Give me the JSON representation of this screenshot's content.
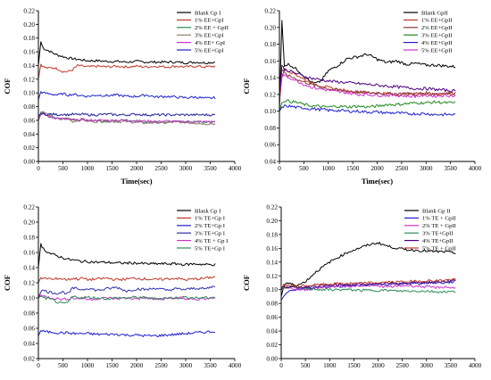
{
  "chart_data": [
    {
      "type": "line",
      "title": "",
      "xlabel": "Time(sec)",
      "ylabel": "COF",
      "xlim": [
        0,
        4000
      ],
      "ylim": [
        0.0,
        0.22
      ],
      "x_ticks": [
        "0",
        "500",
        "1000",
        "1500",
        "2000",
        "2500",
        "3000",
        "3500",
        "4000"
      ],
      "y_ticks": [
        "0.00",
        "0.02",
        "0.04",
        "0.06",
        "0.08",
        "0.10",
        "0.12",
        "0.14",
        "0.16",
        "0.18",
        "0.20",
        "0.22"
      ],
      "legend_position": "top-right",
      "x": [
        0,
        50,
        100,
        200,
        300,
        400,
        500,
        600,
        700,
        800,
        900,
        1000,
        1200,
        1400,
        1600,
        1800,
        2000,
        2200,
        2400,
        2600,
        2800,
        3000,
        3200,
        3400,
        3600
      ],
      "series": [
        {
          "name": "Blank Gp I",
          "color": "#000000",
          "values": [
            0.14,
            0.175,
            0.165,
            0.162,
            0.158,
            0.155,
            0.153,
            0.151,
            0.15,
            0.149,
            0.148,
            0.147,
            0.147,
            0.146,
            0.146,
            0.145,
            0.146,
            0.145,
            0.145,
            0.145,
            0.145,
            0.144,
            0.145,
            0.144,
            0.145
          ]
        },
        {
          "name": "1% EE+GpI",
          "color": "#c0392b",
          "values": [
            0.12,
            0.142,
            0.138,
            0.136,
            0.137,
            0.135,
            0.131,
            0.131,
            0.134,
            0.14,
            0.139,
            0.138,
            0.139,
            0.138,
            0.139,
            0.138,
            0.139,
            0.138,
            0.139,
            0.138,
            0.139,
            0.138,
            0.139,
            0.138,
            0.139
          ]
        },
        {
          "name": "2% EE + GpII",
          "color": "#2e8b57",
          "values": [
            0.06,
            0.072,
            0.07,
            0.066,
            0.064,
            0.063,
            0.062,
            0.062,
            0.061,
            0.061,
            0.06,
            0.06,
            0.06,
            0.059,
            0.059,
            0.06,
            0.059,
            0.058,
            0.058,
            0.058,
            0.058,
            0.058,
            0.058,
            0.058,
            0.058
          ]
        },
        {
          "name": "3% EE+GpI",
          "color": "#8a7e6a",
          "values": [
            0.06,
            0.068,
            0.072,
            0.068,
            0.065,
            0.062,
            0.062,
            0.063,
            0.058,
            0.06,
            0.062,
            0.059,
            0.058,
            0.059,
            0.058,
            0.058,
            0.057,
            0.056,
            0.057,
            0.056,
            0.058,
            0.057,
            0.056,
            0.055,
            0.055
          ]
        },
        {
          "name": "4% EE+ GpI",
          "color": "#cc33cc",
          "values": [
            0.06,
            0.07,
            0.069,
            0.066,
            0.064,
            0.063,
            0.062,
            0.061,
            0.061,
            0.06,
            0.061,
            0.06,
            0.06,
            0.06,
            0.06,
            0.06,
            0.059,
            0.059,
            0.058,
            0.059,
            0.058,
            0.058,
            0.058,
            0.058,
            0.058
          ]
        },
        {
          "name": "5% EE+GpI",
          "color": "#1f1fcc",
          "values": [
            0.09,
            0.102,
            0.1,
            0.099,
            0.098,
            0.097,
            0.099,
            0.097,
            0.098,
            0.097,
            0.096,
            0.095,
            0.097,
            0.096,
            0.097,
            0.095,
            0.095,
            0.097,
            0.094,
            0.095,
            0.094,
            0.093,
            0.094,
            0.092,
            0.093
          ]
        },
        {
          "name": "",
          "color": "#1f1f99",
          "values": [
            0.066,
            0.07,
            0.069,
            0.069,
            0.069,
            0.068,
            0.069,
            0.068,
            0.069,
            0.068,
            0.069,
            0.068,
            0.068,
            0.069,
            0.068,
            0.068,
            0.069,
            0.068,
            0.068,
            0.068,
            0.068,
            0.068,
            0.068,
            0.068,
            0.068
          ]
        }
      ]
    },
    {
      "type": "line",
      "title": "",
      "xlabel": "Time(sec)",
      "ylabel": "COF",
      "xlim": [
        0,
        4000
      ],
      "ylim": [
        0.04,
        0.22
      ],
      "x_ticks": [
        "0",
        "500",
        "1000",
        "1500",
        "2000",
        "2500",
        "3000",
        "3500",
        "4000"
      ],
      "y_ticks": [
        "0.04",
        "0.06",
        "0.08",
        "0.10",
        "0.12",
        "0.14",
        "0.16",
        "0.18",
        "0.20",
        "0.22"
      ],
      "legend_position": "top-right",
      "x": [
        0,
        50,
        100,
        200,
        300,
        400,
        500,
        600,
        700,
        800,
        900,
        1000,
        1200,
        1400,
        1600,
        1800,
        2000,
        2200,
        2400,
        2600,
        2800,
        3000,
        3200,
        3400,
        3600
      ],
      "series": [
        {
          "name": "Blank GpII",
          "color": "#000000",
          "values": [
            0.1,
            0.21,
            0.155,
            0.156,
            0.152,
            0.148,
            0.142,
            0.137,
            0.133,
            0.134,
            0.14,
            0.148,
            0.155,
            0.163,
            0.165,
            0.168,
            0.162,
            0.158,
            0.16,
            0.156,
            0.157,
            0.155,
            0.155,
            0.154,
            0.153
          ]
        },
        {
          "name": "1% EE+GpII",
          "color": "#c0392b",
          "values": [
            0.11,
            0.14,
            0.15,
            0.148,
            0.145,
            0.142,
            0.138,
            0.135,
            0.133,
            0.131,
            0.13,
            0.128,
            0.126,
            0.124,
            0.123,
            0.122,
            0.122,
            0.121,
            0.12,
            0.121,
            0.12,
            0.121,
            0.12,
            0.121,
            0.12
          ]
        },
        {
          "name": "2% EE+GpII",
          "color": "#8b3a3a",
          "values": [
            0.11,
            0.15,
            0.145,
            0.142,
            0.14,
            0.137,
            0.135,
            0.133,
            0.131,
            0.13,
            0.128,
            0.127,
            0.125,
            0.124,
            0.123,
            0.122,
            0.122,
            0.121,
            0.121,
            0.121,
            0.121,
            0.122,
            0.121,
            0.122,
            0.122
          ]
        },
        {
          "name": "3% EE+GpII",
          "color": "#228b22",
          "values": [
            0.1,
            0.11,
            0.113,
            0.112,
            0.111,
            0.11,
            0.108,
            0.107,
            0.106,
            0.106,
            0.105,
            0.105,
            0.106,
            0.105,
            0.106,
            0.105,
            0.106,
            0.108,
            0.108,
            0.109,
            0.11,
            0.11,
            0.111,
            0.11,
            0.11
          ]
        },
        {
          "name": "4% EE+GpII",
          "color": "#1f1fcc",
          "values": [
            0.1,
            0.105,
            0.106,
            0.106,
            0.105,
            0.104,
            0.104,
            0.103,
            0.103,
            0.102,
            0.102,
            0.101,
            0.101,
            0.1,
            0.1,
            0.099,
            0.099,
            0.098,
            0.098,
            0.097,
            0.097,
            0.097,
            0.096,
            0.096,
            0.096
          ]
        },
        {
          "name": "5% EE+GpII",
          "color": "#cc33cc",
          "values": [
            0.12,
            0.145,
            0.142,
            0.14,
            0.138,
            0.135,
            0.132,
            0.13,
            0.128,
            0.127,
            0.126,
            0.125,
            0.123,
            0.122,
            0.12,
            0.12,
            0.119,
            0.119,
            0.119,
            0.118,
            0.118,
            0.119,
            0.118,
            0.119,
            0.118
          ]
        },
        {
          "name": "",
          "color": "#4b0082",
          "values": [
            0.12,
            0.155,
            0.15,
            0.148,
            0.146,
            0.144,
            0.142,
            0.14,
            0.139,
            0.138,
            0.137,
            0.136,
            0.135,
            0.134,
            0.133,
            0.132,
            0.131,
            0.13,
            0.129,
            0.128,
            0.127,
            0.127,
            0.126,
            0.125,
            0.124
          ]
        }
      ]
    },
    {
      "type": "line",
      "title": "",
      "xlabel": "",
      "ylabel": "COF",
      "xlim": [
        0,
        4000
      ],
      "ylim": [
        0.02,
        0.22
      ],
      "x_ticks": [
        "0",
        "500",
        "1000",
        "1500",
        "2000",
        "2500",
        "3000",
        "3500",
        "4000"
      ],
      "y_ticks": [
        "0.02",
        "0.04",
        "0.06",
        "0.08",
        "0.10",
        "0.12",
        "0.14",
        "0.16",
        "0.18",
        "0.20",
        "0.22"
      ],
      "legend_position": "top-right",
      "x": [
        0,
        50,
        100,
        200,
        300,
        400,
        500,
        600,
        700,
        800,
        900,
        1000,
        1200,
        1400,
        1600,
        1800,
        2000,
        2200,
        2400,
        2600,
        2800,
        3000,
        3200,
        3400,
        3600
      ],
      "series": [
        {
          "name": "Blank Gp I",
          "color": "#000000",
          "values": [
            0.14,
            0.172,
            0.165,
            0.16,
            0.157,
            0.155,
            0.153,
            0.151,
            0.15,
            0.149,
            0.148,
            0.148,
            0.147,
            0.147,
            0.146,
            0.146,
            0.146,
            0.145,
            0.145,
            0.145,
            0.145,
            0.144,
            0.145,
            0.144,
            0.144
          ]
        },
        {
          "name": "1% TE+Gp I",
          "color": "#c0392b",
          "values": [
            0.12,
            0.127,
            0.125,
            0.126,
            0.124,
            0.126,
            0.125,
            0.124,
            0.126,
            0.125,
            0.126,
            0.124,
            0.125,
            0.126,
            0.124,
            0.125,
            0.126,
            0.125,
            0.124,
            0.125,
            0.126,
            0.124,
            0.125,
            0.126,
            0.128
          ]
        },
        {
          "name": "2% TE+Gp I",
          "color": "#1f1fcc",
          "values": [
            0.05,
            0.057,
            0.056,
            0.055,
            0.055,
            0.054,
            0.054,
            0.054,
            0.053,
            0.053,
            0.053,
            0.053,
            0.052,
            0.052,
            0.052,
            0.051,
            0.051,
            0.05,
            0.05,
            0.051,
            0.052,
            0.053,
            0.054,
            0.055,
            0.056
          ]
        },
        {
          "name": "3% TE+Gp I",
          "color": "#3030aa",
          "values": [
            0.1,
            0.108,
            0.11,
            0.108,
            0.107,
            0.106,
            0.108,
            0.105,
            0.113,
            0.112,
            0.111,
            0.113,
            0.11,
            0.112,
            0.114,
            0.109,
            0.112,
            0.111,
            0.113,
            0.11,
            0.112,
            0.111,
            0.113,
            0.112,
            0.116
          ]
        },
        {
          "name": "4% TE + Gp I",
          "color": "#cc33cc",
          "values": [
            0.1,
            0.104,
            0.102,
            0.101,
            0.1,
            0.099,
            0.098,
            0.099,
            0.1,
            0.099,
            0.1,
            0.098,
            0.099,
            0.1,
            0.099,
            0.1,
            0.099,
            0.1,
            0.098,
            0.099,
            0.1,
            0.099,
            0.098,
            0.099,
            0.1
          ]
        },
        {
          "name": "5% TE+Gp I",
          "color": "#2e8b57",
          "values": [
            0.1,
            0.102,
            0.1,
            0.099,
            0.097,
            0.094,
            0.092,
            0.094,
            0.102,
            0.101,
            0.1,
            0.101,
            0.1,
            0.099,
            0.1,
            0.1,
            0.101,
            0.1,
            0.099,
            0.1,
            0.1,
            0.101,
            0.1,
            0.1,
            0.101
          ]
        }
      ]
    },
    {
      "type": "line",
      "title": "",
      "xlabel": "",
      "ylabel": "COF",
      "xlim": [
        0,
        4000
      ],
      "ylim": [
        0.0,
        0.22
      ],
      "x_ticks": [
        "0",
        "500",
        "1000",
        "1500",
        "2000",
        "2500",
        "3000",
        "3500",
        "4000"
      ],
      "y_ticks": [
        "0.00",
        "0.02",
        "0.04",
        "0.06",
        "0.08",
        "0.10",
        "0.12",
        "0.14",
        "0.16",
        "0.18",
        "0.20",
        "0.22"
      ],
      "legend_position": "top-right",
      "x": [
        0,
        50,
        100,
        200,
        300,
        400,
        500,
        600,
        700,
        800,
        900,
        1000,
        1200,
        1400,
        1600,
        1800,
        2000,
        2200,
        2400,
        2600,
        2800,
        3000,
        3200,
        3400,
        3600
      ],
      "series": [
        {
          "name": "Blank Gp II",
          "color": "#000000",
          "values": [
            0.09,
            0.104,
            0.11,
            0.108,
            0.107,
            0.108,
            0.112,
            0.118,
            0.125,
            0.13,
            0.135,
            0.14,
            0.148,
            0.155,
            0.16,
            0.165,
            0.168,
            0.163,
            0.16,
            0.158,
            0.157,
            0.156,
            0.155,
            0.155,
            0.153
          ]
        },
        {
          "name": "1% TE + GpII",
          "color": "#1f1fcc",
          "values": [
            0.085,
            0.09,
            0.095,
            0.098,
            0.1,
            0.101,
            0.102,
            0.103,
            0.103,
            0.104,
            0.104,
            0.105,
            0.105,
            0.106,
            0.106,
            0.107,
            0.107,
            0.108,
            0.108,
            0.109,
            0.109,
            0.11,
            0.11,
            0.11,
            0.112
          ]
        },
        {
          "name": "2% TE + GpII",
          "color": "#cc33cc",
          "values": [
            0.1,
            0.104,
            0.103,
            0.102,
            0.101,
            0.1,
            0.1,
            0.101,
            0.102,
            0.103,
            0.104,
            0.104,
            0.105,
            0.105,
            0.106,
            0.106,
            0.105,
            0.104,
            0.105,
            0.106,
            0.105,
            0.104,
            0.103,
            0.104,
            0.102
          ]
        },
        {
          "name": "3% TE+GpII",
          "color": "#2e8b57",
          "values": [
            0.1,
            0.103,
            0.104,
            0.104,
            0.103,
            0.102,
            0.101,
            0.101,
            0.101,
            0.1,
            0.1,
            0.1,
            0.1,
            0.1,
            0.099,
            0.099,
            0.099,
            0.099,
            0.098,
            0.098,
            0.098,
            0.098,
            0.097,
            0.097,
            0.097
          ]
        },
        {
          "name": "4% TE+GpII",
          "color": "#4b0082",
          "values": [
            0.1,
            0.105,
            0.104,
            0.103,
            0.103,
            0.104,
            0.104,
            0.105,
            0.105,
            0.106,
            0.106,
            0.106,
            0.107,
            0.107,
            0.108,
            0.108,
            0.108,
            0.109,
            0.109,
            0.11,
            0.11,
            0.111,
            0.111,
            0.112,
            0.113
          ]
        },
        {
          "name": "5% TE + GpII",
          "color": "#c0392b",
          "values": [
            0.1,
            0.108,
            0.107,
            0.106,
            0.105,
            0.105,
            0.106,
            0.106,
            0.107,
            0.107,
            0.108,
            0.108,
            0.109,
            0.109,
            0.109,
            0.11,
            0.11,
            0.111,
            0.111,
            0.112,
            0.112,
            0.113,
            0.113,
            0.114,
            0.115
          ]
        }
      ]
    }
  ]
}
